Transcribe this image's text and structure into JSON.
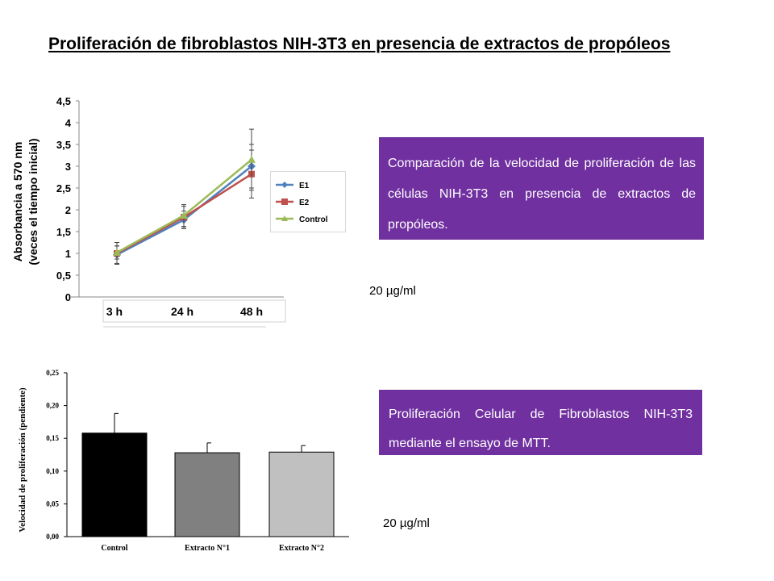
{
  "page": {
    "title": "Proliferación de fibroblastos NIH-3T3 en presencia de extractos de propóleos"
  },
  "boxes": {
    "top_text": "Comparación de la velocidad de proliferación de las células NIH-3T3 en presencia de extractos de propóleos.",
    "bottom_text": "Proliferación Celular de Fibroblastos NIH-3T3 mediante el ensayo de MTT.",
    "top_concentration": "20 µg/ml",
    "bottom_concentration": "20 µg/ml",
    "box_color": "#7030a0"
  },
  "chart_data": [
    {
      "type": "line",
      "ylabel": "Absorbancia a 570 nm (veces el tiempo inicial)",
      "ylim": [
        0,
        4.5
      ],
      "yticks": [
        "0",
        "0,5",
        "1",
        "1,5",
        "2",
        "2,5",
        "3",
        "3,5",
        "4",
        "4,5"
      ],
      "categories": [
        "3 h",
        "24 h",
        "48 h"
      ],
      "legend_position": "right",
      "grid": false,
      "series": [
        {
          "name": "E1",
          "color": "#4f81bd",
          "marker": "diamond",
          "values": [
            0.97,
            1.77,
            3.0
          ],
          "errors": [
            0.2,
            0.2,
            0.5
          ]
        },
        {
          "name": "E2",
          "color": "#c0504d",
          "marker": "square",
          "values": [
            1.0,
            1.83,
            2.82
          ],
          "errors": [
            0.25,
            0.25,
            0.55
          ]
        },
        {
          "name": "Control",
          "color": "#9bbb59",
          "marker": "triangle",
          "values": [
            1.02,
            1.87,
            3.15
          ],
          "errors": [
            0.15,
            0.25,
            0.7
          ]
        }
      ]
    },
    {
      "type": "bar",
      "ylabel": "Velocidad de proliferación (pendiente)",
      "ylim": [
        0,
        0.25
      ],
      "yticks": [
        "0,00",
        "0,05",
        "0,10",
        "0,15",
        "0,20",
        "0,25"
      ],
      "categories": [
        "Control",
        "Extracto N°1",
        "Extracto N°2"
      ],
      "values": [
        0.158,
        0.128,
        0.129
      ],
      "errors": [
        0.03,
        0.015,
        0.01
      ],
      "colors": [
        "#000000",
        "#808080",
        "#c0c0c0"
      ],
      "grid": false
    }
  ]
}
